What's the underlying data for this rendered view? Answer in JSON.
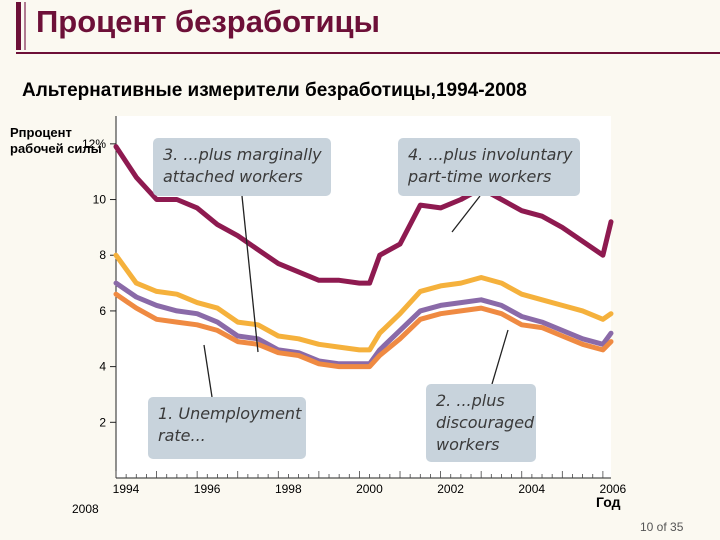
{
  "slide": {
    "title": "Процент безработицы",
    "subtitle": "Альтернативные измерители безработицы,1994-2008",
    "page": "10 of 35",
    "stray_label": "2008"
  },
  "colors": {
    "accent": "#6d1038",
    "plot_background": "#ffffff",
    "callout_box": "#c8d3dc",
    "series_u6": "#8e1a50",
    "series_u5": "#f5b13c",
    "series_u4": "#8a6aa8",
    "series_u3": "#ef8a42"
  },
  "chart_data": {
    "type": "line",
    "ylabel_lines": [
      "Рпроцент",
      "рабочей силы"
    ],
    "xlabel": "Год",
    "ylim": [
      0,
      13
    ],
    "xlim": [
      1994,
      2006.2
    ],
    "yticks": [
      {
        "value": 12,
        "label": "12%"
      },
      {
        "value": 10,
        "label": "10"
      },
      {
        "value": 8,
        "label": "8"
      },
      {
        "value": 6,
        "label": "6"
      },
      {
        "value": 4,
        "label": "4"
      },
      {
        "value": 2,
        "label": "2"
      }
    ],
    "xticks": [
      {
        "value": 1994,
        "label": "1994"
      },
      {
        "value": 1996,
        "label": "1996"
      },
      {
        "value": 1998,
        "label": "1998"
      },
      {
        "value": 2000,
        "label": "2000"
      },
      {
        "value": 2002,
        "label": "2002"
      },
      {
        "value": 2004,
        "label": "2004"
      },
      {
        "value": 2006,
        "label": "2006"
      }
    ],
    "grid": false,
    "x": [
      1994.0,
      1994.5,
      1995.0,
      1995.5,
      1996.0,
      1996.5,
      1997.0,
      1997.5,
      1998.0,
      1998.5,
      1999.0,
      1999.5,
      2000.0,
      2000.25,
      2000.5,
      2001.0,
      2001.5,
      2002.0,
      2002.5,
      2003.0,
      2003.5,
      2004.0,
      2004.5,
      2005.0,
      2005.5,
      2006.0,
      2006.2
    ],
    "series": [
      {
        "key": "u6",
        "values": [
          11.9,
          10.8,
          10.0,
          10.0,
          9.7,
          9.1,
          8.7,
          8.2,
          7.7,
          7.4,
          7.1,
          7.1,
          7.0,
          7.0,
          8.0,
          8.4,
          9.8,
          9.7,
          10.0,
          10.4,
          10.0,
          9.6,
          9.4,
          9.0,
          8.5,
          8.0,
          9.2
        ]
      },
      {
        "key": "u5",
        "values": [
          8.0,
          7.0,
          6.7,
          6.6,
          6.3,
          6.1,
          5.6,
          5.5,
          5.1,
          5.0,
          4.8,
          4.7,
          4.6,
          4.6,
          5.2,
          5.9,
          6.7,
          6.9,
          7.0,
          7.2,
          7.0,
          6.6,
          6.4,
          6.2,
          6.0,
          5.7,
          5.9
        ]
      },
      {
        "key": "u4",
        "values": [
          7.0,
          6.5,
          6.2,
          6.0,
          5.9,
          5.6,
          5.1,
          5.0,
          4.6,
          4.5,
          4.2,
          4.1,
          4.1,
          4.1,
          4.6,
          5.3,
          6.0,
          6.2,
          6.3,
          6.4,
          6.2,
          5.8,
          5.6,
          5.3,
          5.0,
          4.8,
          5.2
        ]
      },
      {
        "key": "u3",
        "values": [
          6.6,
          6.1,
          5.7,
          5.6,
          5.5,
          5.3,
          4.9,
          4.8,
          4.5,
          4.4,
          4.1,
          4.0,
          4.0,
          4.0,
          4.4,
          5.0,
          5.7,
          5.9,
          6.0,
          6.1,
          5.9,
          5.5,
          5.4,
          5.1,
          4.8,
          4.6,
          4.9
        ]
      }
    ],
    "annotations": [
      {
        "key": "u6",
        "lines": [
          "4. ...plus involuntary",
          "part-time workers"
        ]
      },
      {
        "key": "u5",
        "lines": [
          "3. ...plus marginally",
          "attached workers"
        ]
      },
      {
        "key": "u4",
        "lines": [
          "2. ...plus",
          "discouraged",
          "workers"
        ]
      },
      {
        "key": "u3",
        "lines": [
          "1. Unemployment",
          "rate..."
        ]
      }
    ]
  }
}
